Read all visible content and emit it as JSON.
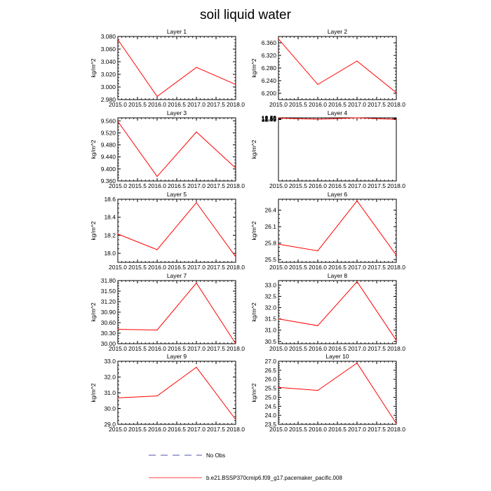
{
  "title": "soil liquid water",
  "legend": {
    "items": [
      {
        "label": "No Obs",
        "color": "#1a1a8c",
        "style": "dashed"
      },
      {
        "label": "b.e21.BSSP370cmip6.f09_g17.pacemaker_pacific.008",
        "color": "#ff0000",
        "style": "solid"
      }
    ]
  },
  "chart_data": [
    {
      "type": "line",
      "title": "Layer 1",
      "ylabel": "kg/m^2",
      "x": [
        2015,
        2016,
        2017,
        2018
      ],
      "xlim": [
        2015,
        2018
      ],
      "xticks": [
        "2015.0",
        "2015.5",
        "2016.0",
        "2016.5",
        "2017.0",
        "2017.5",
        "2018.0"
      ],
      "ylim": [
        2.98,
        3.08
      ],
      "yticks": [
        "2.980",
        "3.000",
        "3.020",
        "3.040",
        "3.060",
        "3.080"
      ],
      "series": [
        {
          "name": "b.e21.BSSP370cmip6.f09_g17.pacemaker_pacific.008",
          "values": [
            3.075,
            2.985,
            3.031,
            3.004
          ]
        }
      ]
    },
    {
      "type": "line",
      "title": "Layer 2",
      "ylabel": "kg/m^2",
      "x": [
        2015,
        2016,
        2017,
        2018
      ],
      "xlim": [
        2015,
        2018
      ],
      "xticks": [
        "2015.0",
        "2015.5",
        "2016.0",
        "2016.5",
        "2017.0",
        "2017.5",
        "2018.0"
      ],
      "ylim": [
        6.18,
        6.38
      ],
      "yticks": [
        "6.200",
        "6.240",
        "6.280",
        "6.320",
        "6.360"
      ],
      "series": [
        {
          "name": "b.e21.BSSP370cmip6.f09_g17.pacemaker_pacific.008",
          "values": [
            6.372,
            6.228,
            6.302,
            6.202
          ]
        }
      ]
    },
    {
      "type": "line",
      "title": "Layer 3",
      "ylabel": "kg/m^2",
      "x": [
        2015,
        2016,
        2017,
        2018
      ],
      "xlim": [
        2015,
        2018
      ],
      "xticks": [
        "2015.0",
        "2015.5",
        "2016.0",
        "2016.5",
        "2017.0",
        "2017.5",
        "2018.0"
      ],
      "ylim": [
        9.36,
        9.57
      ],
      "yticks": [
        "9.360",
        "9.400",
        "9.440",
        "9.480",
        "9.520",
        "9.560"
      ],
      "series": [
        {
          "name": "b.e21.BSSP370cmip6.f09_g17.pacemaker_pacific.008",
          "values": [
            9.558,
            9.375,
            9.523,
            9.403
          ]
        }
      ]
    },
    {
      "type": "line",
      "title": "Layer 4",
      "ylabel": "kg/m^2",
      "x": [
        2015,
        2016,
        2017,
        2018
      ],
      "xlim": [
        2015,
        2018
      ],
      "xticks": [
        "2015.0",
        "2015.5",
        "2016.0",
        "2016.5",
        "2017.0",
        "2017.5",
        "2018.0"
      ],
      "ylim": [
        2.445,
        12.72
      ],
      "yticks": [
        "12.45",
        "12.50",
        "12.55",
        "12.60",
        "12.65",
        "12.70"
      ],
      "series": [
        {
          "name": "b.e21.BSSP370cmip6.f09_g17.pacemaker_pacific.008",
          "values": [
            12.677,
            12.488,
            12.718,
            12.459
          ]
        }
      ]
    },
    {
      "type": "line",
      "title": "Layer 5",
      "ylabel": "kg/m^2",
      "x": [
        2015,
        2016,
        2017,
        2018
      ],
      "xlim": [
        2015,
        2018
      ],
      "xticks": [
        "2015.0",
        "2015.5",
        "2016.0",
        "2016.5",
        "2017.0",
        "2017.5",
        "2018.0"
      ],
      "ylim": [
        17.9,
        18.6
      ],
      "yticks": [
        "18.0",
        "18.2",
        "18.4",
        "18.6"
      ],
      "series": [
        {
          "name": "b.e21.BSSP370cmip6.f09_g17.pacemaker_pacific.008",
          "values": [
            18.214,
            18.04,
            18.562,
            17.962
          ]
        }
      ]
    },
    {
      "type": "line",
      "title": "Layer 6",
      "ylabel": "kg/m^2",
      "x": [
        2015,
        2016,
        2017,
        2018
      ],
      "xlim": [
        2015,
        2018
      ],
      "xticks": [
        "2015.0",
        "2015.5",
        "2016.0",
        "2016.5",
        "2017.0",
        "2017.5",
        "2018.0"
      ],
      "ylim": [
        25.45,
        26.6
      ],
      "yticks": [
        "25.5",
        "25.8",
        "26.1",
        "26.4"
      ],
      "series": [
        {
          "name": "b.e21.BSSP370cmip6.f09_g17.pacemaker_pacific.008",
          "values": [
            25.78,
            25.66,
            26.57,
            25.58
          ]
        }
      ]
    },
    {
      "type": "line",
      "title": "Layer 7",
      "ylabel": "kg/m^2",
      "x": [
        2015,
        2016,
        2017,
        2018
      ],
      "xlim": [
        2015,
        2018
      ],
      "xticks": [
        "2015.0",
        "2015.5",
        "2016.0",
        "2016.5",
        "2017.0",
        "2017.5",
        "2018.0"
      ],
      "ylim": [
        30.0,
        31.8
      ],
      "yticks": [
        "30.00",
        "30.30",
        "30.60",
        "30.90",
        "31.20",
        "31.50",
        "31.80"
      ],
      "series": [
        {
          "name": "b.e21.BSSP370cmip6.f09_g17.pacemaker_pacific.008",
          "values": [
            30.41,
            30.39,
            31.73,
            30.0
          ]
        }
      ]
    },
    {
      "type": "line",
      "title": "Layer 8",
      "ylabel": "kg/m^2",
      "x": [
        2015,
        2016,
        2017,
        2018
      ],
      "xlim": [
        2015,
        2018
      ],
      "xticks": [
        "2015.0",
        "2015.5",
        "2016.0",
        "2016.5",
        "2017.0",
        "2017.5",
        "2018.0"
      ],
      "ylim": [
        30.4,
        33.2
      ],
      "yticks": [
        "30.5",
        "31.0",
        "31.5",
        "32.0",
        "32.5",
        "33.0"
      ],
      "series": [
        {
          "name": "b.e21.BSSP370cmip6.f09_g17.pacemaker_pacific.008",
          "values": [
            31.5,
            31.2,
            33.15,
            30.55
          ]
        }
      ]
    },
    {
      "type": "line",
      "title": "Layer 9",
      "ylabel": "kg/m^2",
      "x": [
        2015,
        2016,
        2017,
        2018
      ],
      "xlim": [
        2015,
        2018
      ],
      "xticks": [
        "2015.0",
        "2015.5",
        "2016.0",
        "2016.5",
        "2017.0",
        "2017.5",
        "2018.0"
      ],
      "ylim": [
        29.0,
        33.0
      ],
      "yticks": [
        "29.0",
        "30.0",
        "31.0",
        "32.0",
        "33.0"
      ],
      "series": [
        {
          "name": "b.e21.BSSP370cmip6.f09_g17.pacemaker_pacific.008",
          "values": [
            30.68,
            30.8,
            32.62,
            29.3
          ]
        }
      ]
    },
    {
      "type": "line",
      "title": "Layer 10",
      "ylabel": "kg/m^2",
      "x": [
        2015,
        2016,
        2017,
        2018
      ],
      "xlim": [
        2015,
        2018
      ],
      "xticks": [
        "2015.0",
        "2015.5",
        "2016.0",
        "2016.5",
        "2017.0",
        "2017.5",
        "2018.0"
      ],
      "ylim": [
        23.5,
        27.0
      ],
      "yticks": [
        "23.5",
        "24.0",
        "24.5",
        "25.0",
        "25.5",
        "26.0",
        "26.5",
        "27.0"
      ],
      "series": [
        {
          "name": "b.e21.BSSP370cmip6.f09_g17.pacemaker_pacific.008",
          "values": [
            25.55,
            25.38,
            26.9,
            23.55
          ]
        }
      ]
    }
  ]
}
